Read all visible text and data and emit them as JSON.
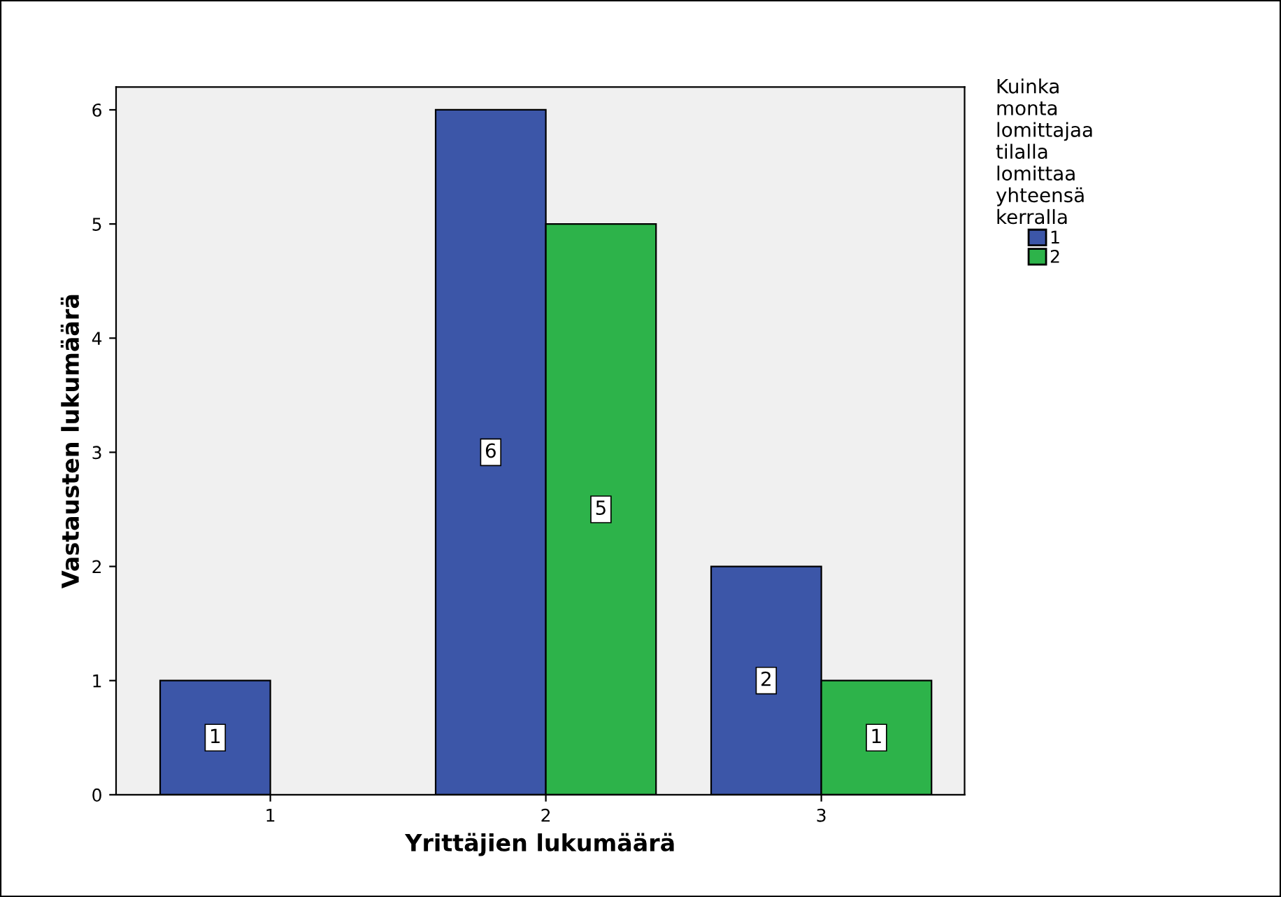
{
  "chart_data": {
    "type": "bar",
    "xlabel": "Yrittäjien lukumäärä",
    "ylabel": "Vastausten lukumäärä",
    "legend_title": "Kuinka monta lomittajaa tilalla lomittaa yhteensä kerralla",
    "categories": [
      "1",
      "2",
      "3"
    ],
    "series": [
      {
        "name": "1",
        "color": "#3c56a8",
        "values": [
          1,
          6,
          2
        ]
      },
      {
        "name": "2",
        "color": "#2db34a",
        "values": [
          null,
          5,
          1
        ]
      }
    ],
    "ylim": [
      0,
      6.2
    ],
    "yticks": [
      0,
      1,
      2,
      3,
      4,
      5,
      6
    ],
    "data_labels": true,
    "legend": "top right",
    "grid": false
  }
}
